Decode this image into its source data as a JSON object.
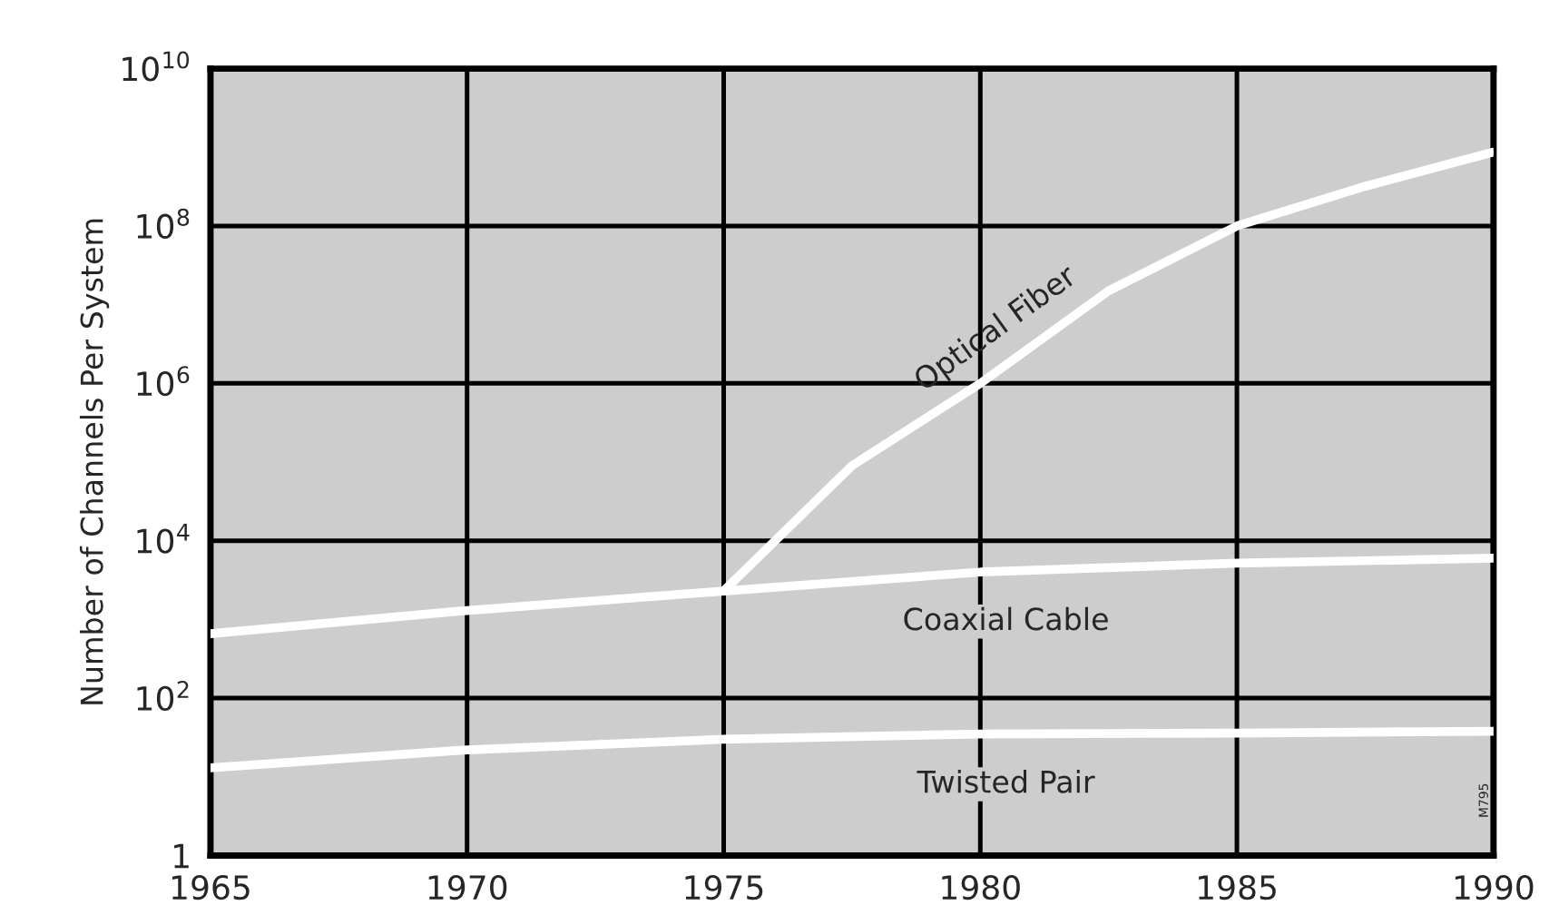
{
  "chart_data": {
    "type": "line",
    "ylabel": "Number of Channels Per System",
    "log": "y",
    "xlim": [
      1965,
      1990
    ],
    "xticks": [
      1965,
      1970,
      1975,
      1980,
      1985,
      1990
    ],
    "ylim": [
      1,
      10000000000
    ],
    "yticks": [
      {
        "value": 1,
        "label": "1"
      },
      {
        "value": 100,
        "label": "10$^{2}$"
      },
      {
        "value": 10000,
        "label": "10$^{4}$"
      },
      {
        "value": 1000000,
        "label": "10$^{6}$"
      },
      {
        "value": 100000000,
        "label": "10$^{8}$"
      },
      {
        "value": 10000000000,
        "label": "10$^{10}$"
      }
    ],
    "grid": true,
    "line_style": "solid",
    "marker": "none",
    "series": [
      {
        "name": "Optical Fiber",
        "color": "#ffffff",
        "x": [
          1975,
          1977.5,
          1980,
          1982.5,
          1985,
          1987.5,
          1990
        ],
        "values": [
          2300,
          90000,
          1000000,
          15000000,
          100000000,
          320000000,
          870000000
        ]
      },
      {
        "name": "Coaxial Cable",
        "color": "#ffffff",
        "x": [
          1965,
          1970,
          1975,
          1980,
          1985,
          1990
        ],
        "values": [
          660,
          1300,
          2300,
          4000,
          5200,
          6000
        ]
      },
      {
        "name": "Twisted Pair",
        "color": "#ffffff",
        "x": [
          1965,
          1970,
          1975,
          1980,
          1985,
          1990
        ],
        "values": [
          13,
          22,
          30,
          35,
          36,
          38
        ]
      }
    ],
    "annotations": [
      "M795"
    ]
  }
}
